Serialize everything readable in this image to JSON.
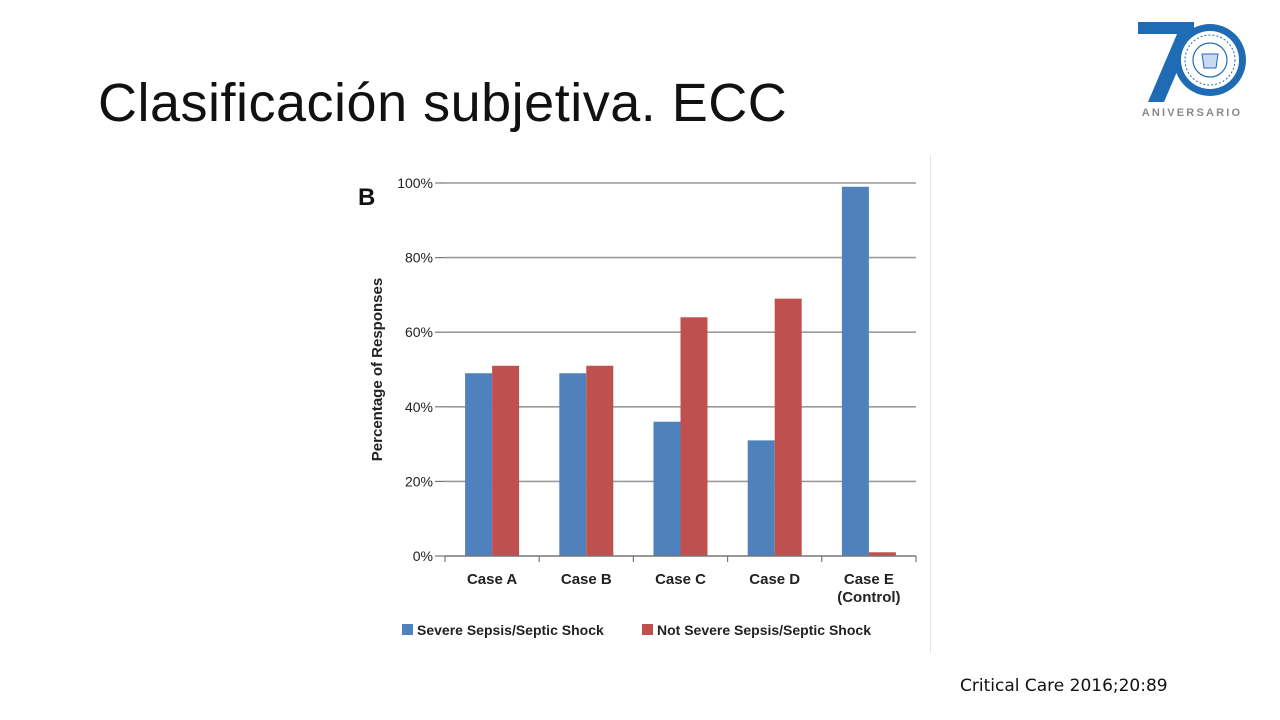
{
  "slide": {
    "title": "Clasificación subjetiva. ECC",
    "citation": "Critical Care 2016;20:89"
  },
  "logo": {
    "number": "70",
    "subtitle": "ANIVERSARIO",
    "color": "#1f6cb5"
  },
  "chart_data": {
    "type": "bar",
    "panel_label": "B",
    "title": "",
    "xlabel": "",
    "ylabel": "Percentage of Responses",
    "ylim": [
      0,
      100
    ],
    "yticks": [
      0,
      20,
      40,
      60,
      80,
      100
    ],
    "ytick_labels": [
      "0%",
      "20%",
      "40%",
      "60%",
      "80%",
      "100%"
    ],
    "grid": true,
    "categories": [
      "Case A",
      "Case B",
      "Case C",
      "Case D",
      "Case E\n(Control)"
    ],
    "series": [
      {
        "name": "Severe Sepsis/Septic Shock",
        "color": "#4f81bd",
        "values": [
          49,
          49,
          36,
          31,
          99
        ]
      },
      {
        "name": "Not Severe Sepsis/Septic Shock",
        "color": "#c0504d",
        "values": [
          51,
          51,
          64,
          69,
          1
        ]
      }
    ],
    "legend_position": "bottom"
  }
}
